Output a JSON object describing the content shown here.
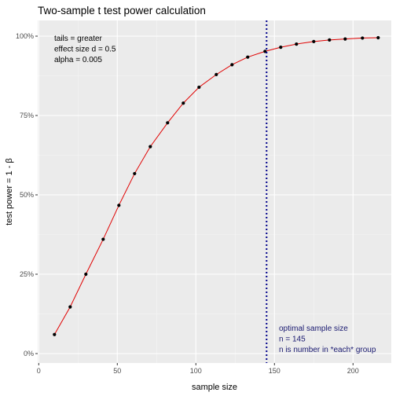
{
  "chart_data": {
    "type": "line",
    "title": "Two-sample t test power calculation",
    "xlabel": "sample size",
    "ylabel": "test power = 1 - β",
    "xlim": [
      0,
      220
    ],
    "ylim": [
      0,
      1
    ],
    "x_ticks": [
      0,
      50,
      100,
      150,
      200
    ],
    "x_tick_labels": [
      "0",
      "50",
      "100",
      "150",
      "200"
    ],
    "y_ticks": [
      0,
      0.25,
      0.5,
      0.75,
      1.0
    ],
    "y_tick_labels": [
      "0%",
      "25%",
      "50%",
      "75%",
      "100%"
    ],
    "grid": true,
    "series": [
      {
        "line_color": "#e00000",
        "point_color": "#000000",
        "x": [
          10,
          20,
          30,
          41,
          51,
          61,
          71,
          82,
          92,
          102,
          113,
          123,
          133,
          144,
          154,
          164,
          175,
          185,
          195,
          206,
          216
        ],
        "y": [
          0.06,
          0.147,
          0.25,
          0.36,
          0.467,
          0.567,
          0.652,
          0.727,
          0.789,
          0.839,
          0.879,
          0.91,
          0.934,
          0.952,
          0.965,
          0.975,
          0.983,
          0.988,
          0.991,
          0.994,
          0.995
        ]
      }
    ],
    "annotations": [
      {
        "name": "parameters",
        "lines": [
          "tails = greater",
          "effect size d = 0.5",
          "alpha = 0.005"
        ],
        "color": "#000000"
      },
      {
        "name": "optimal",
        "lines": [
          "optimal sample size",
          "n = 145",
          "n is number in *each* group"
        ],
        "color": "#191970"
      }
    ],
    "vline": {
      "x": 145,
      "color": "#00008b",
      "style": "dotted"
    }
  }
}
